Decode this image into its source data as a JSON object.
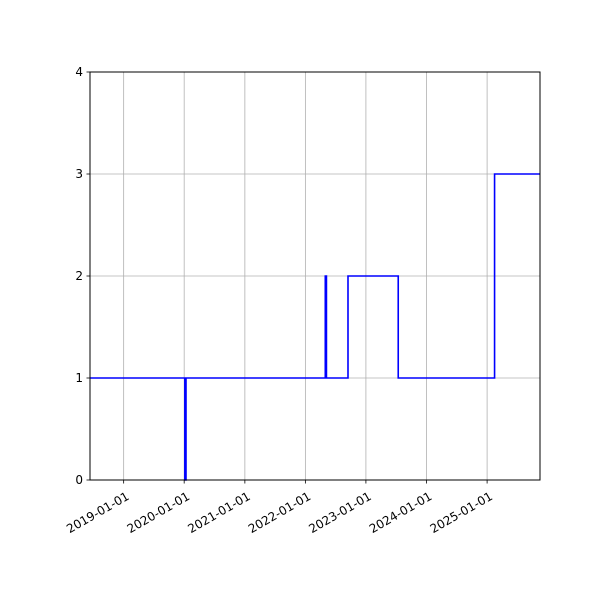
{
  "chart_data": {
    "type": "line",
    "step": "post",
    "title": "",
    "xlabel": "",
    "ylabel": "",
    "x_type": "date",
    "xlim": [
      "2018-06-12",
      "2025-11-16"
    ],
    "ylim": [
      0,
      4
    ],
    "grid": true,
    "legend": "none",
    "x_ticks": [
      "2019-01-01",
      "2020-01-01",
      "2021-01-01",
      "2022-01-01",
      "2023-01-01",
      "2024-01-01",
      "2025-01-01"
    ],
    "y_ticks": [
      0,
      1,
      2,
      3,
      4
    ],
    "series": [
      {
        "color": "#0000ff",
        "x": [
          "2018-06-12",
          "2020-01-05",
          "2020-01-12",
          "2022-05-01",
          "2022-05-08",
          "2022-09-15",
          "2023-07-15",
          "2025-02-15",
          "2025-11-16"
        ],
        "y": [
          1,
          0,
          1,
          2,
          1,
          2,
          1,
          3,
          3
        ]
      }
    ]
  }
}
